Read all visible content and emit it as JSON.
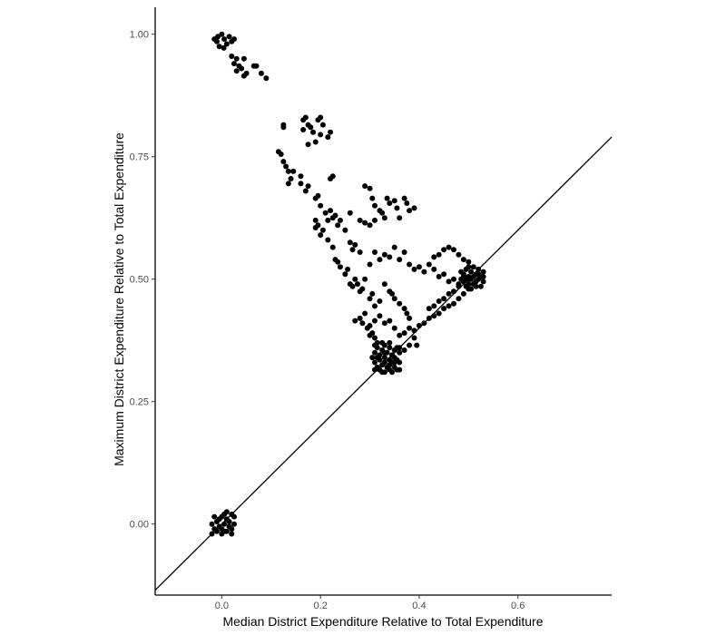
{
  "chart_data": {
    "type": "scatter",
    "xlabel": "Median District Expenditure Relative to Total Expenditure",
    "ylabel": "Maximum District Expenditure Relative to Total Expenditure",
    "xlim": [
      -0.135,
      0.79
    ],
    "ylim": [
      -0.145,
      1.055
    ],
    "x_ticks": [
      {
        "value": 0.0,
        "label": "0.0"
      },
      {
        "value": 0.2,
        "label": "0.2"
      },
      {
        "value": 0.4,
        "label": "0.4"
      },
      {
        "value": 0.6,
        "label": "0.6"
      }
    ],
    "y_ticks": [
      {
        "value": 0.0,
        "label": "0.00"
      },
      {
        "value": 0.25,
        "label": "0.25"
      },
      {
        "value": 0.5,
        "label": "0.50"
      },
      {
        "value": 0.75,
        "label": "0.75"
      },
      {
        "value": 1.0,
        "label": "1.00"
      }
    ],
    "reference_line": {
      "type": "identity",
      "slope": 1,
      "intercept": 0
    },
    "grid": false,
    "legend": "none",
    "points": [
      [
        -0.015,
        0.99
      ],
      [
        -0.01,
        0.985
      ],
      [
        -0.005,
        0.975
      ],
      [
        0.0,
        1.0
      ],
      [
        0.005,
        0.99
      ],
      [
        0.01,
        0.98
      ],
      [
        0.015,
        0.995
      ],
      [
        0.02,
        0.985
      ],
      [
        0.025,
        0.99
      ],
      [
        -0.008,
        0.995
      ],
      [
        0.004,
        0.972
      ],
      [
        0.02,
        0.955
      ],
      [
        0.025,
        0.94
      ],
      [
        0.03,
        0.95
      ],
      [
        0.035,
        0.935
      ],
      [
        0.03,
        0.925
      ],
      [
        0.04,
        0.93
      ],
      [
        0.045,
        0.95
      ],
      [
        0.05,
        0.92
      ],
      [
        0.045,
        0.915
      ],
      [
        0.065,
        0.935
      ],
      [
        0.07,
        0.935
      ],
      [
        0.08,
        0.92
      ],
      [
        0.09,
        0.91
      ],
      [
        0.125,
        0.81
      ],
      [
        0.125,
        0.815
      ],
      [
        0.165,
        0.825
      ],
      [
        0.17,
        0.83
      ],
      [
        0.175,
        0.815
      ],
      [
        0.18,
        0.81
      ],
      [
        0.165,
        0.805
      ],
      [
        0.185,
        0.8
      ],
      [
        0.175,
        0.775
      ],
      [
        0.19,
        0.78
      ],
      [
        0.195,
        0.825
      ],
      [
        0.2,
        0.83
      ],
      [
        0.205,
        0.815
      ],
      [
        0.215,
        0.79
      ],
      [
        0.22,
        0.8
      ],
      [
        0.2,
        0.795
      ],
      [
        0.115,
        0.76
      ],
      [
        0.12,
        0.755
      ],
      [
        0.125,
        0.74
      ],
      [
        0.13,
        0.73
      ],
      [
        0.135,
        0.72
      ],
      [
        0.14,
        0.705
      ],
      [
        0.145,
        0.72
      ],
      [
        0.135,
        0.695
      ],
      [
        0.16,
        0.71
      ],
      [
        0.16,
        0.695
      ],
      [
        0.17,
        0.68
      ],
      [
        0.175,
        0.69
      ],
      [
        0.19,
        0.665
      ],
      [
        0.195,
        0.67
      ],
      [
        0.22,
        0.705
      ],
      [
        0.225,
        0.71
      ],
      [
        0.2,
        0.65
      ],
      [
        0.21,
        0.635
      ],
      [
        0.215,
        0.62
      ],
      [
        0.22,
        0.64
      ],
      [
        0.225,
        0.625
      ],
      [
        0.23,
        0.63
      ],
      [
        0.235,
        0.61
      ],
      [
        0.24,
        0.62
      ],
      [
        0.25,
        0.6
      ],
      [
        0.26,
        0.635
      ],
      [
        0.19,
        0.62
      ],
      [
        0.195,
        0.61
      ],
      [
        0.19,
        0.605
      ],
      [
        0.2,
        0.59
      ],
      [
        0.205,
        0.6
      ],
      [
        0.215,
        0.58
      ],
      [
        0.225,
        0.565
      ],
      [
        0.26,
        0.575
      ],
      [
        0.265,
        0.56
      ],
      [
        0.27,
        0.57
      ],
      [
        0.28,
        0.555
      ],
      [
        0.29,
        0.69
      ],
      [
        0.3,
        0.685
      ],
      [
        0.305,
        0.665
      ],
      [
        0.31,
        0.65
      ],
      [
        0.32,
        0.64
      ],
      [
        0.325,
        0.635
      ],
      [
        0.33,
        0.625
      ],
      [
        0.31,
        0.62
      ],
      [
        0.3,
        0.61
      ],
      [
        0.29,
        0.615
      ],
      [
        0.28,
        0.62
      ],
      [
        0.335,
        0.665
      ],
      [
        0.34,
        0.655
      ],
      [
        0.35,
        0.66
      ],
      [
        0.355,
        0.645
      ],
      [
        0.36,
        0.625
      ],
      [
        0.37,
        0.665
      ],
      [
        0.375,
        0.655
      ],
      [
        0.38,
        0.64
      ],
      [
        0.39,
        0.645
      ],
      [
        0.23,
        0.54
      ],
      [
        0.235,
        0.535
      ],
      [
        0.24,
        0.525
      ],
      [
        0.25,
        0.51
      ],
      [
        0.255,
        0.52
      ],
      [
        0.26,
        0.49
      ],
      [
        0.265,
        0.485
      ],
      [
        0.27,
        0.5
      ],
      [
        0.275,
        0.49
      ],
      [
        0.28,
        0.475
      ],
      [
        0.285,
        0.48
      ],
      [
        0.29,
        0.5
      ],
      [
        0.3,
        0.46
      ],
      [
        0.305,
        0.47
      ],
      [
        0.31,
        0.445
      ],
      [
        0.32,
        0.455
      ],
      [
        0.33,
        0.49
      ],
      [
        0.34,
        0.475
      ],
      [
        0.345,
        0.47
      ],
      [
        0.35,
        0.46
      ],
      [
        0.36,
        0.45
      ],
      [
        0.37,
        0.44
      ],
      [
        0.375,
        0.43
      ],
      [
        0.38,
        0.42
      ],
      [
        0.3,
        0.53
      ],
      [
        0.31,
        0.555
      ],
      [
        0.32,
        0.54
      ],
      [
        0.33,
        0.55
      ],
      [
        0.34,
        0.545
      ],
      [
        0.35,
        0.565
      ],
      [
        0.36,
        0.54
      ],
      [
        0.37,
        0.555
      ],
      [
        0.38,
        0.53
      ],
      [
        0.39,
        0.52
      ],
      [
        0.4,
        0.525
      ],
      [
        0.41,
        0.515
      ],
      [
        0.42,
        0.53
      ],
      [
        0.43,
        0.52
      ],
      [
        0.44,
        0.505
      ],
      [
        0.45,
        0.51
      ],
      [
        0.46,
        0.495
      ],
      [
        0.47,
        0.5
      ],
      [
        0.43,
        0.545
      ],
      [
        0.44,
        0.55
      ],
      [
        0.45,
        0.56
      ],
      [
        0.46,
        0.565
      ],
      [
        0.47,
        0.56
      ],
      [
        0.48,
        0.55
      ],
      [
        0.49,
        0.54
      ],
      [
        0.5,
        0.535
      ],
      [
        0.27,
        0.415
      ],
      [
        0.28,
        0.42
      ],
      [
        0.285,
        0.41
      ],
      [
        0.29,
        0.43
      ],
      [
        0.295,
        0.4
      ],
      [
        0.3,
        0.385
      ],
      [
        0.305,
        0.39
      ],
      [
        0.31,
        0.38
      ],
      [
        0.315,
        0.37
      ],
      [
        0.3,
        0.405
      ],
      [
        0.31,
        0.415
      ],
      [
        0.32,
        0.425
      ],
      [
        0.33,
        0.41
      ],
      [
        0.34,
        0.415
      ],
      [
        0.35,
        0.4
      ],
      [
        0.36,
        0.385
      ],
      [
        0.37,
        0.39
      ],
      [
        0.38,
        0.4
      ],
      [
        0.39,
        0.395
      ],
      [
        0.4,
        0.405
      ],
      [
        0.41,
        0.41
      ],
      [
        0.42,
        0.42
      ],
      [
        0.43,
        0.425
      ],
      [
        0.44,
        0.43
      ],
      [
        0.45,
        0.44
      ],
      [
        0.46,
        0.445
      ],
      [
        0.47,
        0.45
      ],
      [
        0.48,
        0.46
      ],
      [
        0.49,
        0.47
      ],
      [
        0.5,
        0.48
      ],
      [
        0.42,
        0.44
      ],
      [
        0.43,
        0.445
      ],
      [
        0.44,
        0.455
      ],
      [
        0.45,
        0.46
      ],
      [
        0.46,
        0.47
      ],
      [
        0.47,
        0.475
      ],
      [
        0.48,
        0.485
      ],
      [
        0.39,
        0.38
      ],
      [
        0.38,
        0.365
      ],
      [
        0.37,
        0.355
      ],
      [
        0.36,
        0.36
      ],
      [
        0.395,
        0.365
      ],
      [
        0.48,
        0.49
      ],
      [
        0.485,
        0.5
      ],
      [
        0.49,
        0.51
      ],
      [
        0.49,
        0.495
      ],
      [
        0.495,
        0.52
      ],
      [
        0.495,
        0.485
      ],
      [
        0.5,
        0.505
      ],
      [
        0.5,
        0.49
      ],
      [
        0.505,
        0.515
      ],
      [
        0.505,
        0.5
      ],
      [
        0.51,
        0.525
      ],
      [
        0.51,
        0.49
      ],
      [
        0.515,
        0.51
      ],
      [
        0.515,
        0.495
      ],
      [
        0.52,
        0.5
      ],
      [
        0.52,
        0.52
      ],
      [
        0.525,
        0.485
      ],
      [
        0.525,
        0.505
      ],
      [
        0.53,
        0.495
      ],
      [
        0.53,
        0.515
      ],
      [
        0.5,
        0.525
      ],
      [
        0.505,
        0.48
      ],
      [
        0.485,
        0.515
      ],
      [
        0.495,
        0.5
      ],
      [
        0.51,
        0.505
      ],
      [
        0.52,
        0.51
      ],
      [
        0.5,
        0.5
      ],
      [
        0.49,
        0.505
      ],
      [
        0.53,
        0.505
      ],
      [
        0.515,
        0.485
      ],
      [
        0.305,
        0.34
      ],
      [
        0.31,
        0.33
      ],
      [
        0.31,
        0.35
      ],
      [
        0.315,
        0.32
      ],
      [
        0.315,
        0.36
      ],
      [
        0.32,
        0.315
      ],
      [
        0.32,
        0.335
      ],
      [
        0.32,
        0.345
      ],
      [
        0.325,
        0.325
      ],
      [
        0.325,
        0.355
      ],
      [
        0.33,
        0.31
      ],
      [
        0.33,
        0.33
      ],
      [
        0.33,
        0.34
      ],
      [
        0.335,
        0.32
      ],
      [
        0.335,
        0.35
      ],
      [
        0.34,
        0.315
      ],
      [
        0.34,
        0.335
      ],
      [
        0.34,
        0.36
      ],
      [
        0.345,
        0.33
      ],
      [
        0.345,
        0.345
      ],
      [
        0.35,
        0.32
      ],
      [
        0.35,
        0.34
      ],
      [
        0.35,
        0.355
      ],
      [
        0.355,
        0.315
      ],
      [
        0.355,
        0.335
      ],
      [
        0.36,
        0.33
      ],
      [
        0.36,
        0.35
      ],
      [
        0.31,
        0.315
      ],
      [
        0.325,
        0.31
      ],
      [
        0.345,
        0.31
      ],
      [
        0.33,
        0.365
      ],
      [
        0.34,
        0.37
      ],
      [
        0.325,
        0.37
      ],
      [
        0.31,
        0.365
      ],
      [
        0.355,
        0.36
      ],
      [
        0.36,
        0.315
      ],
      [
        0.315,
        0.34
      ],
      [
        0.33,
        0.35
      ],
      [
        0.34,
        0.325
      ],
      [
        0.35,
        0.33
      ],
      [
        -0.02,
        0.0
      ],
      [
        -0.015,
        -0.01
      ],
      [
        -0.01,
        0.005
      ],
      [
        -0.01,
        -0.015
      ],
      [
        -0.005,
        0.01
      ],
      [
        -0.005,
        -0.005
      ],
      [
        0.0,
        0.015
      ],
      [
        0.0,
        -0.01
      ],
      [
        0.005,
        0.0
      ],
      [
        0.005,
        0.02
      ],
      [
        0.01,
        -0.015
      ],
      [
        0.01,
        0.01
      ],
      [
        0.015,
        0.005
      ],
      [
        0.015,
        -0.005
      ],
      [
        0.02,
        0.02
      ],
      [
        0.02,
        -0.01
      ],
      [
        0.025,
        0.0
      ],
      [
        0.025,
        0.015
      ],
      [
        -0.02,
        -0.02
      ],
      [
        0.0,
        -0.02
      ],
      [
        0.02,
        -0.02
      ],
      [
        0.01,
        0.025
      ],
      [
        -0.015,
        0.015
      ],
      [
        0.005,
        -0.015
      ]
    ]
  }
}
